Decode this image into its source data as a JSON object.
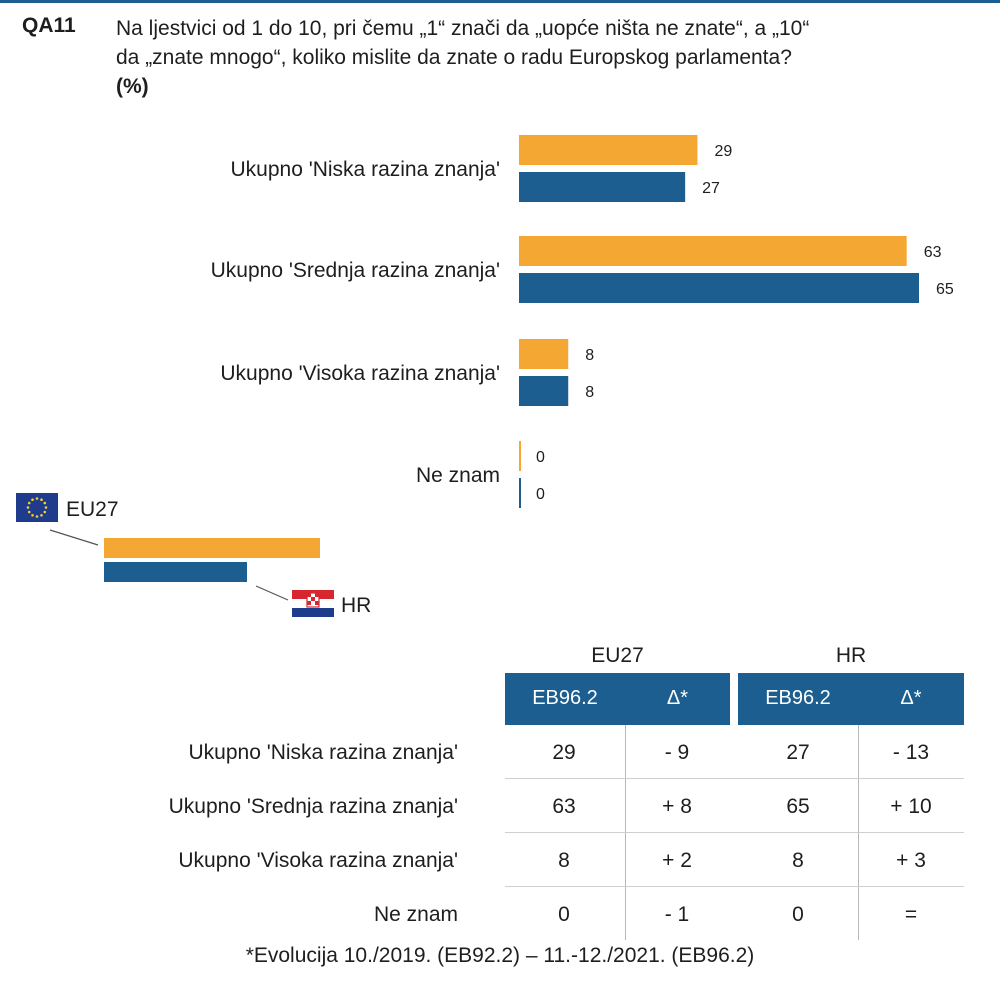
{
  "header": {
    "question_id": "QA11",
    "question_lines": [
      "Na ljestvici od 1 do 10, pri čemu „1“ znači da „uopće ništa ne znate“, a „10“",
      "da „znate mnogo“, koliko mislite da znate o radu Europskog parlamenta?"
    ],
    "unit": "(%)"
  },
  "chart_data": {
    "type": "bar",
    "orientation": "horizontal",
    "categories": [
      "Ukupno 'Niska razina znanja'",
      "Ukupno 'Srednja razina znanja'",
      "Ukupno 'Visoka razina znanja'",
      "Ne znam"
    ],
    "series": [
      {
        "name": "EU27",
        "color": "#f5a733",
        "values": [
          29,
          63,
          8,
          0
        ]
      },
      {
        "name": "HR",
        "color": "#1b5e8f",
        "values": [
          27,
          65,
          8,
          0
        ]
      }
    ],
    "xlim": [
      0,
      65
    ],
    "grid": false,
    "legend": {
      "position": "bottom-left",
      "items": [
        "EU27",
        "HR"
      ],
      "flag_icons": [
        "eu-flag-icon",
        "croatia-flag-icon"
      ]
    }
  },
  "table": {
    "group_headers": [
      "EU27",
      "HR"
    ],
    "column_headers": [
      "EB96.2",
      "Δ*",
      "EB96.2",
      "Δ*"
    ],
    "header_color": "#1b5e8f",
    "rows": [
      {
        "label": "Ukupno 'Niska razina znanja'",
        "values": [
          "29",
          "- 9",
          "27",
          "- 13"
        ]
      },
      {
        "label": "Ukupno 'Srednja razina znanja'",
        "values": [
          "63",
          "+ 8",
          "65",
          "+ 10"
        ]
      },
      {
        "label": "Ukupno 'Visoka razina znanja'",
        "values": [
          "8",
          "+ 2",
          "8",
          "+ 3"
        ]
      },
      {
        "label": "Ne znam",
        "values": [
          "0",
          "- 1",
          "0",
          "="
        ]
      }
    ]
  },
  "footnote": "*Evolucija 10./2019. (EB92.2) – 11.-12./2021. (EB96.2)"
}
